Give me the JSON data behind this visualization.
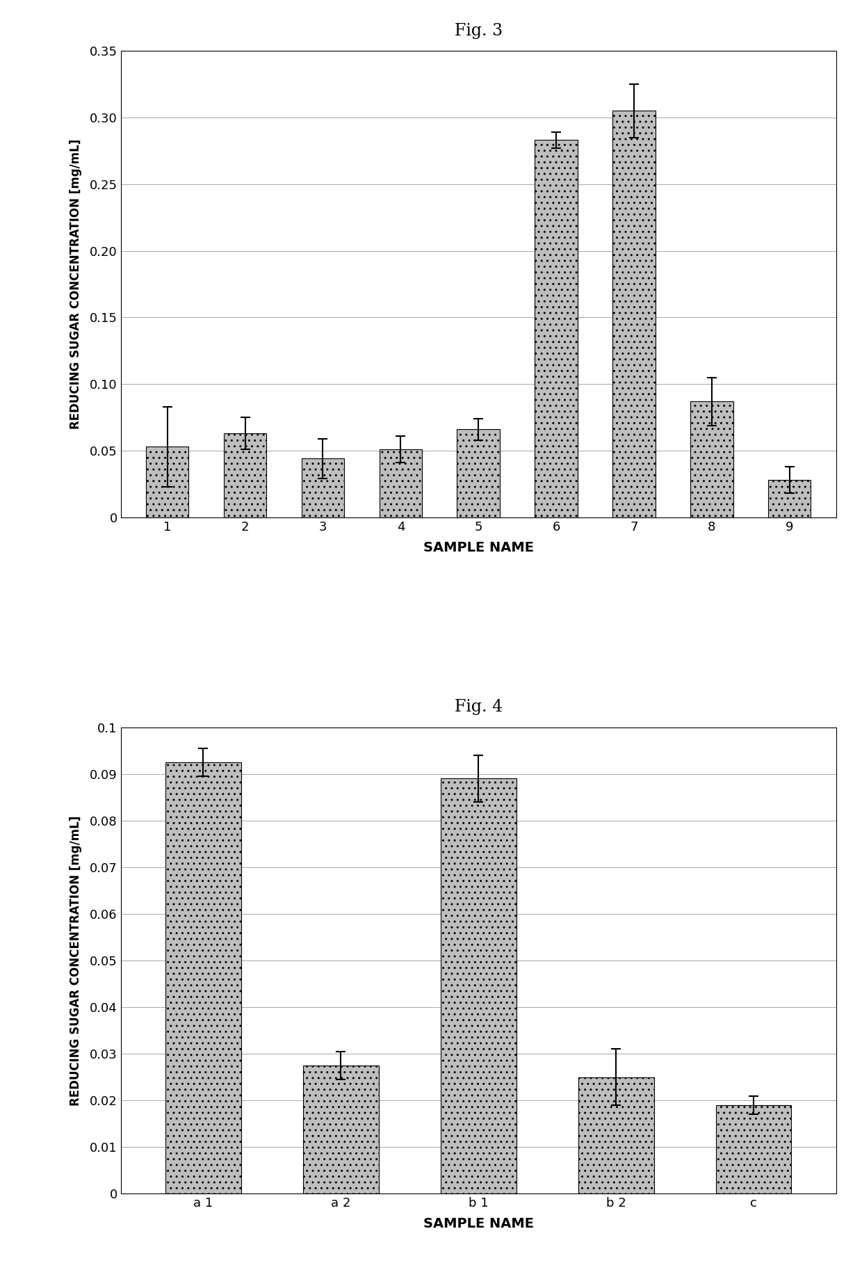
{
  "fig3": {
    "title": "Fig. 3",
    "categories": [
      "1",
      "2",
      "3",
      "4",
      "5",
      "6",
      "7",
      "8",
      "9"
    ],
    "values": [
      0.053,
      0.063,
      0.044,
      0.051,
      0.066,
      0.283,
      0.305,
      0.087,
      0.028
    ],
    "errors": [
      0.03,
      0.012,
      0.015,
      0.01,
      0.008,
      0.006,
      0.02,
      0.018,
      0.01
    ],
    "bar_color": "#BEBEBE",
    "bar_edgecolor": "#000000",
    "ylabel": "REDUCING SUGAR CONCENTRATION [mg/mL]",
    "xlabel": "SAMPLE NAME",
    "ylim": [
      0,
      0.35
    ],
    "yticks": [
      0,
      0.05,
      0.1,
      0.15,
      0.2,
      0.25,
      0.3,
      0.35
    ],
    "ytick_labels": [
      "0",
      "0.05",
      "0.10",
      "0.15",
      "0.20",
      "0.25",
      "0.30",
      "0.35"
    ]
  },
  "fig4": {
    "title": "Fig. 4",
    "categories": [
      "a 1",
      "a 2",
      "b 1",
      "b 2",
      "c"
    ],
    "values": [
      0.0925,
      0.0275,
      0.089,
      0.025,
      0.019
    ],
    "errors": [
      0.003,
      0.003,
      0.005,
      0.006,
      0.002
    ],
    "bar_color": "#BEBEBE",
    "bar_edgecolor": "#000000",
    "ylabel": "REDUCING SUGAR CONCENTRATION [mg/mL]",
    "xlabel": "SAMPLE NAME",
    "ylim": [
      0,
      0.1
    ],
    "yticks": [
      0,
      0.01,
      0.02,
      0.03,
      0.04,
      0.05,
      0.06,
      0.07,
      0.08,
      0.09,
      0.1
    ],
    "ytick_labels": [
      "0",
      "0.01",
      "0.02",
      "0.03",
      "0.04",
      "0.05",
      "0.06",
      "0.07",
      "0.08",
      "0.09",
      "0.1"
    ]
  },
  "background_color": "#ffffff",
  "bar_width": 0.55,
  "elinewidth": 1.5,
  "ecapsize": 5,
  "ecapthick": 1.5,
  "hatch": ".."
}
